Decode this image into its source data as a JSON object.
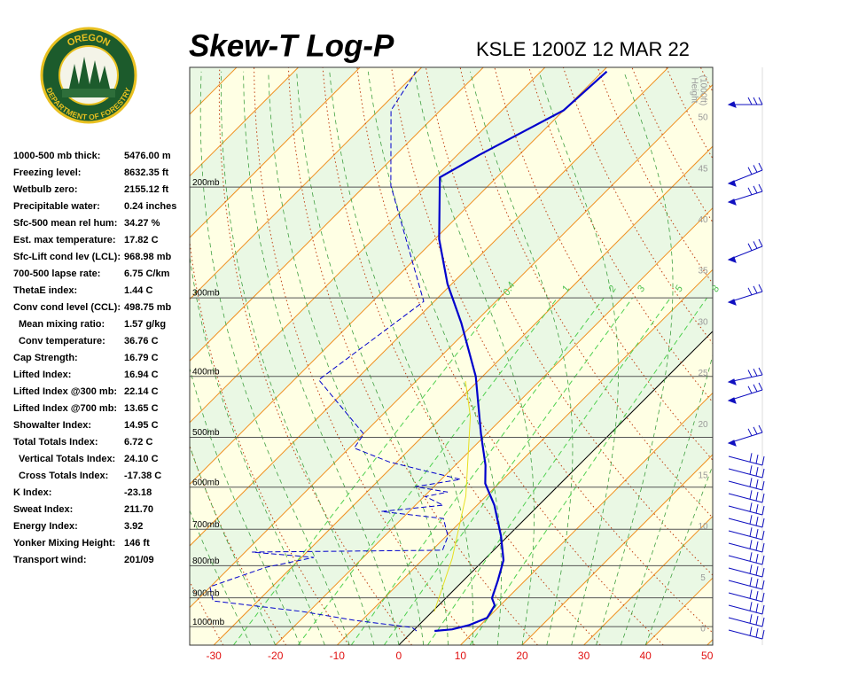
{
  "logo": {
    "top": "OREGON",
    "bottom": "DEPARTMENT OF FORESTRY"
  },
  "indices": [
    {
      "label": "1000-500 mb thick:",
      "value": "5476.00 m",
      "indent": false
    },
    {
      "label": "Freezing level:",
      "value": "8632.35 ft",
      "indent": false
    },
    {
      "label": "Wetbulb zero:",
      "value": "2155.12 ft",
      "indent": false
    },
    {
      "label": "Precipitable water:",
      "value": "0.24 inches",
      "indent": false
    },
    {
      "label": "Sfc-500 mean rel hum:",
      "value": "34.27 %",
      "indent": false
    },
    {
      "label": "Est. max temperature:",
      "value": "17.82 C",
      "indent": false
    },
    {
      "label": "Sfc-Lift cond lev (LCL):",
      "value": "968.98 mb",
      "indent": false
    },
    {
      "label": "700-500 lapse rate:",
      "value": "6.75 C/km",
      "indent": false
    },
    {
      "label": "ThetaE index:",
      "value": "1.44 C",
      "indent": false
    },
    {
      "label": "Conv cond level (CCL):",
      "value": "498.75 mb",
      "indent": false
    },
    {
      "label": "Mean mixing ratio:",
      "value": "1.57 g/kg",
      "indent": true
    },
    {
      "label": "Conv temperature:",
      "value": "36.76 C",
      "indent": true
    },
    {
      "label": "Cap Strength:",
      "value": "16.79 C",
      "indent": false
    },
    {
      "label": "Lifted Index:",
      "value": "16.94 C",
      "indent": false
    },
    {
      "label": "Lifted Index @300 mb:",
      "value": "22.14 C",
      "indent": false
    },
    {
      "label": "Lifted Index @700 mb:",
      "value": "13.65 C",
      "indent": false
    },
    {
      "label": "Showalter Index:",
      "value": "14.95 C",
      "indent": false
    },
    {
      "label": "Total Totals Index:",
      "value": "6.72 C",
      "indent": false
    },
    {
      "label": "Vertical Totals Index:",
      "value": "24.10 C",
      "indent": true
    },
    {
      "label": "Cross Totals Index:",
      "value": "-17.38 C",
      "indent": true
    },
    {
      "label": "K Index:",
      "value": "-23.18",
      "indent": false
    },
    {
      "label": "Sweat Index:",
      "value": "211.70",
      "indent": false
    },
    {
      "label": "Energy Index:",
      "value": "3.92",
      "indent": false
    },
    {
      "label": "Yonker Mixing Height:",
      "value": "146 ft",
      "indent": false
    },
    {
      "label": "Transport wind:",
      "value": "201/09",
      "indent": false
    }
  ],
  "chart_data": {
    "type": "skewt",
    "title": "Skew-T Log-P",
    "subtitle": "KSLE 1200Z 12 MAR 22",
    "xlim": [
      -33.9,
      50.9
    ],
    "xticks": [
      -30,
      -20,
      -10,
      0,
      10,
      20,
      30,
      40,
      50
    ],
    "ylim": [
      1070,
      129
    ],
    "log_scale": true,
    "yticks": [
      {
        "value": 200,
        "label": "200mb"
      },
      {
        "value": 300,
        "label": "300mb"
      },
      {
        "value": 400,
        "label": "400mb"
      },
      {
        "value": 500,
        "label": "500mb"
      },
      {
        "value": 600,
        "label": "600mb"
      },
      {
        "value": 700,
        "label": "700mb"
      },
      {
        "value": 800,
        "label": "800mb"
      },
      {
        "value": 900,
        "label": "900mb"
      },
      {
        "value": 1000,
        "label": "1000mb"
      }
    ],
    "height_axis": {
      "title": [
        "Height",
        "(1000ft)"
      ],
      "ticks": [
        0,
        5,
        10,
        15,
        20,
        25,
        30,
        35,
        40,
        45,
        50
      ]
    },
    "mixing_ratio_lines": [
      0.4,
      1,
      2,
      3,
      5,
      8
    ],
    "profiles": [
      {
        "color": "#0000cc",
        "width": 2.2,
        "dashed": false,
        "pressure": [
          1016,
          1010,
          994,
          968,
          925,
          901,
          845,
          784,
          718,
          641,
          592,
          554,
          494,
          400,
          329,
          285,
          242,
          193,
          178,
          151,
          131
        ],
        "temperature": [
          3.5,
          6.1,
          8.2,
          9.9,
          9.1,
          7.5,
          5.6,
          3.2,
          -1.1,
          -7.2,
          -12.2,
          -15.1,
          -20.9,
          -31.1,
          -42.1,
          -50.7,
          -59.3,
          -69.2,
          -66.5,
          -60,
          -59.3
        ]
      },
      {
        "color": "#0000cc",
        "width": 1,
        "dashed": true,
        "pressure": [
          1016,
          1003,
          977,
          946,
          910,
          864,
          805,
          776,
          761,
          756,
          718,
          673,
          656,
          641,
          621,
          611,
          599,
          583,
          565,
          547,
          520,
          494,
          405,
          304,
          199,
          151,
          131
        ],
        "temperature": [
          0.6,
          -0.7,
          -11.2,
          -21.2,
          -37.3,
          -40.1,
          -34.2,
          -28,
          -38.9,
          -8.3,
          -9.7,
          -13.3,
          -24.5,
          -15.5,
          -19.8,
          -16.9,
          -23,
          -16.9,
          -24.1,
          -31.3,
          -39.2,
          -39.9,
          -56,
          -51.7,
          -75.8,
          -88,
          -90.2
        ]
      },
      {
        "color": "#e8e020",
        "width": 1,
        "dashed": false,
        "pressure": [
          946,
          779,
          620,
          463,
          407
        ],
        "temperature": [
          0.3,
          -5.4,
          -13.3,
          -25.5,
          -32
        ]
      }
    ]
  }
}
